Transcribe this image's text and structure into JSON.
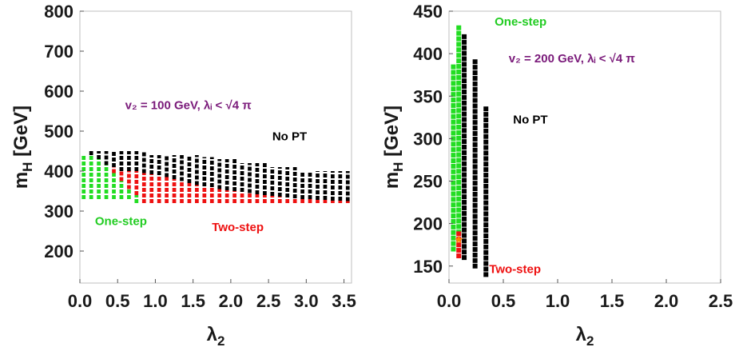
{
  "chart_data": [
    {
      "type": "scatter",
      "xlabel": "λ2",
      "ylabel": "mH [GeV]",
      "xlim": [
        0,
        3.6
      ],
      "ylim": [
        120,
        800
      ],
      "x_ticks": [
        "0.0",
        "0.5",
        "1.0",
        "1.5",
        "2.0",
        "2.5",
        "3.0",
        "3.5"
      ],
      "y_ticks": [
        "200",
        "300",
        "400",
        "500",
        "600",
        "700",
        "800"
      ],
      "x_tick_values": [
        0,
        0.5,
        1.0,
        1.5,
        2.0,
        2.5,
        3.0,
        3.5
      ],
      "y_tick_values": [
        200,
        300,
        400,
        500,
        600,
        700,
        800
      ],
      "grid": false,
      "colors": {
        "one_step": "#22dd22",
        "two_step": "#ee1111",
        "no_pt": "#000000"
      },
      "column_width": 0.05,
      "columns": [
        {
          "x": 0.05,
          "segments": [
            [
              330,
              440,
              "one_step"
            ]
          ]
        },
        {
          "x": 0.15,
          "segments": [
            [
              330,
              440,
              "one_step"
            ],
            [
              440,
              450,
              "no_pt"
            ]
          ]
        },
        {
          "x": 0.25,
          "segments": [
            [
              330,
              430,
              "one_step"
            ],
            [
              430,
              450,
              "no_pt"
            ]
          ]
        },
        {
          "x": 0.35,
          "segments": [
            [
              330,
              415,
              "one_step"
            ],
            [
              415,
              450,
              "no_pt"
            ]
          ]
        },
        {
          "x": 0.45,
          "segments": [
            [
              330,
              395,
              "one_step"
            ],
            [
              395,
              410,
              "two_step"
            ],
            [
              410,
              450,
              "no_pt"
            ]
          ]
        },
        {
          "x": 0.55,
          "segments": [
            [
              330,
              375,
              "one_step"
            ],
            [
              375,
              400,
              "two_step"
            ],
            [
              400,
              450,
              "no_pt"
            ]
          ]
        },
        {
          "x": 0.65,
          "segments": [
            [
              330,
              355,
              "one_step"
            ],
            [
              355,
              400,
              "two_step"
            ],
            [
              400,
              450,
              "no_pt"
            ]
          ]
        },
        {
          "x": 0.75,
          "segments": [
            [
              320,
              340,
              "one_step"
            ],
            [
              340,
              400,
              "two_step"
            ],
            [
              400,
              450,
              "no_pt"
            ]
          ]
        },
        {
          "x": 0.85,
          "segments": [
            [
              320,
              395,
              "two_step"
            ],
            [
              395,
              450,
              "no_pt"
            ]
          ]
        },
        {
          "x": 0.95,
          "segments": [
            [
              320,
              392,
              "two_step"
            ],
            [
              392,
              440,
              "no_pt"
            ]
          ]
        },
        {
          "x": 1.05,
          "segments": [
            [
              320,
              390,
              "two_step"
            ],
            [
              390,
              440,
              "no_pt"
            ]
          ]
        },
        {
          "x": 1.15,
          "segments": [
            [
              320,
              385,
              "two_step"
            ],
            [
              385,
              440,
              "no_pt"
            ]
          ]
        },
        {
          "x": 1.25,
          "segments": [
            [
              320,
              380,
              "two_step"
            ],
            [
              380,
              440,
              "no_pt"
            ]
          ]
        },
        {
          "x": 1.35,
          "segments": [
            [
              320,
              375,
              "two_step"
            ],
            [
              375,
              440,
              "no_pt"
            ]
          ]
        },
        {
          "x": 1.45,
          "segments": [
            [
              320,
              370,
              "two_step"
            ],
            [
              370,
              440,
              "no_pt"
            ]
          ]
        },
        {
          "x": 1.55,
          "segments": [
            [
              320,
              365,
              "two_step"
            ],
            [
              365,
              440,
              "no_pt"
            ]
          ]
        },
        {
          "x": 1.65,
          "segments": [
            [
              320,
              362,
              "two_step"
            ],
            [
              362,
              435,
              "no_pt"
            ]
          ]
        },
        {
          "x": 1.75,
          "segments": [
            [
              320,
              360,
              "two_step"
            ],
            [
              360,
              435,
              "no_pt"
            ]
          ]
        },
        {
          "x": 1.85,
          "segments": [
            [
              320,
              355,
              "two_step"
            ],
            [
              355,
              430,
              "no_pt"
            ]
          ]
        },
        {
          "x": 1.95,
          "segments": [
            [
              320,
              352,
              "two_step"
            ],
            [
              352,
              430,
              "no_pt"
            ]
          ]
        },
        {
          "x": 2.05,
          "segments": [
            [
              320,
              350,
              "two_step"
            ],
            [
              350,
              430,
              "no_pt"
            ]
          ]
        },
        {
          "x": 2.15,
          "segments": [
            [
              320,
              348,
              "two_step"
            ],
            [
              348,
              420,
              "no_pt"
            ]
          ]
        },
        {
          "x": 2.25,
          "segments": [
            [
              320,
              345,
              "two_step"
            ],
            [
              345,
              420,
              "no_pt"
            ]
          ]
        },
        {
          "x": 2.35,
          "segments": [
            [
              320,
              342,
              "two_step"
            ],
            [
              342,
              420,
              "no_pt"
            ]
          ]
        },
        {
          "x": 2.45,
          "segments": [
            [
              320,
              340,
              "two_step"
            ],
            [
              340,
              420,
              "no_pt"
            ]
          ]
        },
        {
          "x": 2.55,
          "segments": [
            [
              320,
              338,
              "two_step"
            ],
            [
              338,
              410,
              "no_pt"
            ]
          ]
        },
        {
          "x": 2.65,
          "segments": [
            [
              320,
              336,
              "two_step"
            ],
            [
              336,
              410,
              "no_pt"
            ]
          ]
        },
        {
          "x": 2.75,
          "segments": [
            [
              320,
              334,
              "two_step"
            ],
            [
              334,
              410,
              "no_pt"
            ]
          ]
        },
        {
          "x": 2.85,
          "segments": [
            [
              320,
              332,
              "two_step"
            ],
            [
              332,
              410,
              "no_pt"
            ]
          ]
        },
        {
          "x": 2.95,
          "segments": [
            [
              320,
              330,
              "two_step"
            ],
            [
              330,
              400,
              "no_pt"
            ]
          ]
        },
        {
          "x": 3.05,
          "segments": [
            [
              320,
              330,
              "two_step"
            ],
            [
              330,
              400,
              "no_pt"
            ]
          ]
        },
        {
          "x": 3.15,
          "segments": [
            [
              320,
              328,
              "two_step"
            ],
            [
              328,
              400,
              "no_pt"
            ]
          ]
        },
        {
          "x": 3.25,
          "segments": [
            [
              320,
              328,
              "two_step"
            ],
            [
              328,
              400,
              "no_pt"
            ]
          ]
        },
        {
          "x": 3.35,
          "segments": [
            [
              320,
              326,
              "two_step"
            ],
            [
              326,
              400,
              "no_pt"
            ]
          ]
        },
        {
          "x": 3.45,
          "segments": [
            [
              320,
              326,
              "two_step"
            ],
            [
              326,
              400,
              "no_pt"
            ]
          ]
        },
        {
          "x": 3.55,
          "segments": [
            [
              320,
              325,
              "two_step"
            ],
            [
              325,
              400,
              "no_pt"
            ]
          ]
        }
      ],
      "annotations": [
        {
          "text": "v₂ = 100 GeV,  λᵢ < √4 π",
          "x": 0.6,
          "y": 555,
          "color": "#7a1a7a"
        },
        {
          "text": "No PT",
          "x": 2.55,
          "y": 477,
          "color": "#000000"
        },
        {
          "text": "One-step",
          "x": 0.2,
          "y": 265,
          "color": "#22cc22"
        },
        {
          "text": "Two-step",
          "x": 1.75,
          "y": 250,
          "color": "#ee1111"
        }
      ]
    },
    {
      "type": "scatter",
      "xlabel": "λ2",
      "ylabel": "mH [GeV]",
      "xlim": [
        0,
        2.5
      ],
      "ylim": [
        130,
        450
      ],
      "x_ticks": [
        "0.0",
        "0.5",
        "1.0",
        "1.5",
        "2.0",
        "2.5"
      ],
      "y_ticks": [
        "150",
        "200",
        "250",
        "300",
        "350",
        "400",
        "450"
      ],
      "x_tick_values": [
        0,
        0.5,
        1.0,
        1.5,
        2.0,
        2.5
      ],
      "y_tick_values": [
        150,
        200,
        250,
        300,
        350,
        400,
        450
      ],
      "grid": false,
      "colors": {
        "one_step": "#22dd22",
        "two_step": "#ee1111",
        "no_pt": "#000000",
        "star": "#ff8800"
      },
      "point_size": 6,
      "columns": [
        {
          "x": 0.04,
          "y_min": 170,
          "y_max": 385,
          "step": 6.5,
          "color": "one_step"
        },
        {
          "x": 0.09,
          "y_min": 190,
          "y_max": 432,
          "step": 6.5,
          "color": "one_step"
        },
        {
          "x": 0.09,
          "y_min": 162,
          "y_max": 188,
          "step": 6.5,
          "color": "two_step"
        },
        {
          "x": 0.14,
          "y_min": 160,
          "y_max": 422,
          "step": 6.5,
          "color": "no_pt"
        },
        {
          "x": 0.24,
          "y_min": 150,
          "y_max": 395,
          "step": 6.5,
          "color": "no_pt"
        },
        {
          "x": 0.34,
          "y_min": 140,
          "y_max": 335,
          "step": 6.5,
          "color": "no_pt"
        }
      ],
      "star": {
        "x": 0.09,
        "y": 181
      },
      "annotations": [
        {
          "text": "One-step",
          "x": 0.42,
          "y": 433,
          "color": "#22cc22"
        },
        {
          "text": "v₂ = 200 GeV,  λᵢ < √4 π",
          "x": 0.55,
          "y": 390,
          "color": "#7a1a7a"
        },
        {
          "text": "No PT",
          "x": 0.59,
          "y": 318,
          "color": "#000000"
        },
        {
          "text": "Two-step",
          "x": 0.37,
          "y": 142,
          "color": "#ee1111"
        }
      ]
    }
  ]
}
